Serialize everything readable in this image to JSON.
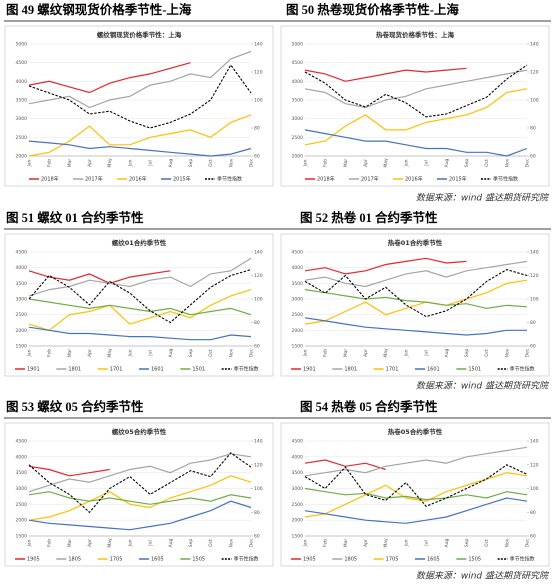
{
  "captions": [
    "图 49 螺纹钢现货价格季节性-上海",
    "图 50 热卷现货价格季节性-上海",
    "图 51 螺纹 01 合约季节性",
    "图 52 热卷 01 合约季节性",
    "图 53 螺纹 05 合约季节性",
    "图 54 热卷 05 合约季节性"
  ],
  "sources": [
    "数据来源：wind 盛达期货研究院",
    "数据来源：wind 盛达期货研究院",
    "数据来源：wind 盛达期货研究院"
  ],
  "chart_data": [
    {
      "type": "line",
      "title": "螺纹钢现货价格季节性：上海",
      "categories": [
        "Jan",
        "Feb",
        "Mar",
        "Apr",
        "May",
        "Jun",
        "Jul",
        "Aug",
        "Sep",
        "Oct",
        "Nov",
        "Dec"
      ],
      "ylim": [
        2000,
        5000
      ],
      "yticks": [
        2000,
        2500,
        3000,
        3500,
        4000,
        4500,
        5000
      ],
      "y2lim": [
        60,
        140
      ],
      "y2ticks": [
        60,
        80,
        100,
        120,
        140
      ],
      "grid": true,
      "series": [
        {
          "name": "2018年",
          "color": "#e8262a",
          "values": [
            3900,
            4000,
            3850,
            3700,
            3950,
            4100,
            4200,
            4350,
            4500,
            null,
            null,
            null
          ]
        },
        {
          "name": "2017年",
          "color": "#a5a5a5",
          "values": [
            3400,
            3500,
            3600,
            3300,
            3500,
            3600,
            3900,
            4000,
            4200,
            4100,
            4600,
            4800
          ]
        },
        {
          "name": "2016年",
          "color": "#ffc000",
          "values": [
            2000,
            2100,
            2400,
            2800,
            2300,
            2300,
            2500,
            2600,
            2700,
            2500,
            2900,
            3100
          ]
        },
        {
          "name": "2015年",
          "color": "#4472c4",
          "values": [
            2400,
            2350,
            2300,
            2200,
            2250,
            2200,
            2150,
            2100,
            2050,
            2000,
            2050,
            2200
          ]
        },
        {
          "name": "季节性指数",
          "color": "#000000",
          "dashed": true,
          "axis": "y2",
          "values": [
            110,
            105,
            100,
            90,
            92,
            85,
            80,
            84,
            90,
            100,
            125,
            105
          ]
        }
      ]
    },
    {
      "type": "line",
      "title": "热卷现货价格季节性：上海",
      "categories": [
        "Jan",
        "Feb",
        "Mar",
        "Apr",
        "May",
        "Jun",
        "Jul",
        "Aug",
        "Sep",
        "Oct",
        "Nov",
        "Dec"
      ],
      "ylim": [
        2000,
        5000
      ],
      "yticks": [
        2000,
        2500,
        3000,
        3500,
        4000,
        4500,
        5000
      ],
      "y2lim": [
        60,
        140
      ],
      "y2ticks": [
        60,
        80,
        100,
        120,
        140
      ],
      "grid": true,
      "series": [
        {
          "name": "2018年",
          "color": "#e8262a",
          "values": [
            4300,
            4200,
            4000,
            4100,
            4200,
            4300,
            4250,
            4300,
            4350,
            null,
            null,
            null
          ]
        },
        {
          "name": "2017年",
          "color": "#a5a5a5",
          "values": [
            3800,
            3700,
            3400,
            3300,
            3500,
            3600,
            3800,
            3900,
            4000,
            4100,
            4200,
            4300
          ]
        },
        {
          "name": "2016年",
          "color": "#ffc000",
          "values": [
            2300,
            2400,
            2800,
            3100,
            2700,
            2700,
            2900,
            3000,
            3100,
            3300,
            3700,
            3800
          ]
        },
        {
          "name": "2015年",
          "color": "#4472c4",
          "values": [
            2700,
            2600,
            2500,
            2400,
            2400,
            2300,
            2200,
            2200,
            2100,
            2100,
            2000,
            2200
          ]
        },
        {
          "name": "季节性指数",
          "color": "#000000",
          "dashed": true,
          "axis": "y2",
          "values": [
            120,
            112,
            100,
            95,
            104,
            98,
            88,
            90,
            96,
            102,
            115,
            125
          ]
        }
      ]
    },
    {
      "type": "line",
      "title": "螺纹01合约季节性",
      "categories": [
        "Jan",
        "Feb",
        "Mar",
        "Apr",
        "May",
        "Jun",
        "Jul",
        "Aug",
        "Sep",
        "Oct",
        "Nov",
        "Dec"
      ],
      "ylim": [
        1500,
        4500
      ],
      "yticks": [
        1500,
        2000,
        2500,
        3000,
        3500,
        4000,
        4500
      ],
      "y2lim": [
        60,
        140
      ],
      "y2ticks": [
        60,
        80,
        100,
        120,
        140
      ],
      "grid": true,
      "series": [
        {
          "name": "1901",
          "color": "#e8262a",
          "values": [
            3900,
            3700,
            3600,
            3800,
            3500,
            3700,
            3800,
            3900,
            null,
            null,
            null,
            null
          ]
        },
        {
          "name": "1801",
          "color": "#a5a5a5",
          "values": [
            3100,
            3300,
            3400,
            3600,
            3500,
            3400,
            3600,
            3700,
            3400,
            3800,
            3900,
            4300
          ]
        },
        {
          "name": "1701",
          "color": "#ffc000",
          "values": [
            2200,
            2000,
            2500,
            2600,
            2800,
            2200,
            2400,
            2600,
            2400,
            2800,
            3100,
            3300
          ]
        },
        {
          "name": "1601",
          "color": "#4472c4",
          "values": [
            2100,
            2000,
            1900,
            1900,
            1850,
            1800,
            1800,
            1750,
            1700,
            1700,
            1850,
            1800
          ]
        },
        {
          "name": "1501",
          "color": "#70ad47",
          "values": [
            3000,
            2900,
            2800,
            2700,
            2800,
            2700,
            2600,
            2700,
            2500,
            2600,
            2700,
            2500
          ]
        },
        {
          "name": "季节性指数",
          "color": "#000000",
          "dashed": true,
          "axis": "y2",
          "values": [
            100,
            120,
            110,
            95,
            115,
            105,
            90,
            80,
            95,
            110,
            120,
            125
          ]
        }
      ]
    },
    {
      "type": "line",
      "title": "热卷01合约季节性",
      "categories": [
        "Jan",
        "Feb",
        "Mar",
        "Apr",
        "May",
        "Jun",
        "Jul",
        "Aug",
        "Sep",
        "Oct",
        "Nov",
        "Dec"
      ],
      "ylim": [
        1500,
        4500
      ],
      "yticks": [
        1500,
        2000,
        2500,
        3000,
        3500,
        4000,
        4500
      ],
      "y2lim": [
        60,
        140
      ],
      "y2ticks": [
        60,
        80,
        100,
        120,
        140
      ],
      "grid": true,
      "series": [
        {
          "name": "1901",
          "color": "#e8262a",
          "values": [
            3900,
            4000,
            3800,
            3900,
            4100,
            4200,
            4300,
            4150,
            4200,
            null,
            null,
            null
          ]
        },
        {
          "name": "1801",
          "color": "#a5a5a5",
          "values": [
            3600,
            3700,
            3500,
            3400,
            3600,
            3800,
            3900,
            3700,
            3900,
            4000,
            4100,
            4200
          ]
        },
        {
          "name": "1701",
          "color": "#ffc000",
          "values": [
            2200,
            2300,
            2600,
            2900,
            2500,
            2700,
            2900,
            2800,
            3000,
            3200,
            3500,
            3600
          ]
        },
        {
          "name": "1601",
          "color": "#4472c4",
          "values": [
            2400,
            2300,
            2200,
            2100,
            2050,
            2000,
            1950,
            1900,
            1850,
            1900,
            2000,
            2000
          ]
        },
        {
          "name": "1501",
          "color": "#70ad47",
          "values": [
            3300,
            3200,
            3100,
            3000,
            3050,
            2950,
            2900,
            2800,
            2850,
            2700,
            2800,
            2750
          ]
        },
        {
          "name": "季节性指数",
          "color": "#000000",
          "dashed": true,
          "axis": "y2",
          "values": [
            115,
            105,
            120,
            100,
            110,
            95,
            85,
            90,
            100,
            115,
            125,
            120
          ]
        }
      ]
    },
    {
      "type": "line",
      "title": "螺纹05合约季节性",
      "categories": [
        "Jan",
        "Feb",
        "Mar",
        "Apr",
        "May",
        "Jun",
        "Jul",
        "Aug",
        "Sep",
        "Oct",
        "Nov",
        "Dec"
      ],
      "ylim": [
        1500,
        4500
      ],
      "yticks": [
        1500,
        2000,
        2500,
        3000,
        3500,
        4000,
        4500
      ],
      "y2lim": [
        60,
        140
      ],
      "y2ticks": [
        60,
        80,
        100,
        120,
        140
      ],
      "grid": true,
      "series": [
        {
          "name": "1905",
          "color": "#e8262a",
          "values": [
            3700,
            3600,
            3400,
            3500,
            3600,
            null,
            null,
            null,
            null,
            null,
            null,
            null
          ]
        },
        {
          "name": "1805",
          "color": "#a5a5a5",
          "values": [
            2900,
            3100,
            3300,
            3200,
            3400,
            3600,
            3700,
            3500,
            3800,
            3900,
            4100,
            4000
          ]
        },
        {
          "name": "1705",
          "color": "#ffc000",
          "values": [
            2000,
            2100,
            2300,
            2600,
            2900,
            2500,
            2400,
            2700,
            2900,
            3100,
            3400,
            3200
          ]
        },
        {
          "name": "1605",
          "color": "#4472c4",
          "values": [
            2000,
            1900,
            1850,
            1800,
            1750,
            1700,
            1800,
            1900,
            2100,
            2300,
            2600,
            2400
          ]
        },
        {
          "name": "1505",
          "color": "#70ad47",
          "values": [
            2800,
            2900,
            2700,
            2600,
            2700,
            2600,
            2500,
            2600,
            2700,
            2600,
            2800,
            2700
          ]
        },
        {
          "name": "季节性指数",
          "color": "#000000",
          "dashed": true,
          "axis": "y2",
          "values": [
            120,
            105,
            95,
            80,
            100,
            110,
            95,
            105,
            115,
            110,
            130,
            118
          ]
        }
      ]
    },
    {
      "type": "line",
      "title": "热卷05合约季节性",
      "categories": [
        "Jan",
        "Feb",
        "Mar",
        "Apr",
        "May",
        "Jun",
        "Jul",
        "Aug",
        "Sep",
        "Oct",
        "Nov",
        "Dec"
      ],
      "ylim": [
        1500,
        4500
      ],
      "yticks": [
        1500,
        2000,
        2500,
        3000,
        3500,
        4000,
        4500
      ],
      "y2lim": [
        60,
        140
      ],
      "y2ticks": [
        60,
        80,
        100,
        120,
        140
      ],
      "grid": true,
      "series": [
        {
          "name": "1905",
          "color": "#e8262a",
          "values": [
            3800,
            3900,
            3700,
            3800,
            3600,
            null,
            null,
            null,
            null,
            null,
            null,
            null
          ]
        },
        {
          "name": "1805",
          "color": "#a5a5a5",
          "values": [
            3400,
            3500,
            3600,
            3500,
            3700,
            3800,
            3900,
            3800,
            4000,
            4100,
            4200,
            4300
          ]
        },
        {
          "name": "1705",
          "color": "#ffc000",
          "values": [
            2100,
            2200,
            2500,
            2800,
            3100,
            2700,
            2600,
            2900,
            3100,
            3300,
            3500,
            3400
          ]
        },
        {
          "name": "1605",
          "color": "#4472c4",
          "values": [
            2300,
            2200,
            2100,
            2000,
            1950,
            1900,
            2000,
            2100,
            2300,
            2500,
            2700,
            2600
          ]
        },
        {
          "name": "1505",
          "color": "#70ad47",
          "values": [
            3000,
            2900,
            2800,
            2850,
            2700,
            2750,
            2650,
            2700,
            2800,
            2700,
            2900,
            2800
          ]
        },
        {
          "name": "季节性指数",
          "color": "#000000",
          "dashed": true,
          "axis": "y2",
          "values": [
            110,
            100,
            118,
            95,
            90,
            105,
            85,
            92,
            100,
            108,
            120,
            112
          ]
        }
      ]
    }
  ]
}
